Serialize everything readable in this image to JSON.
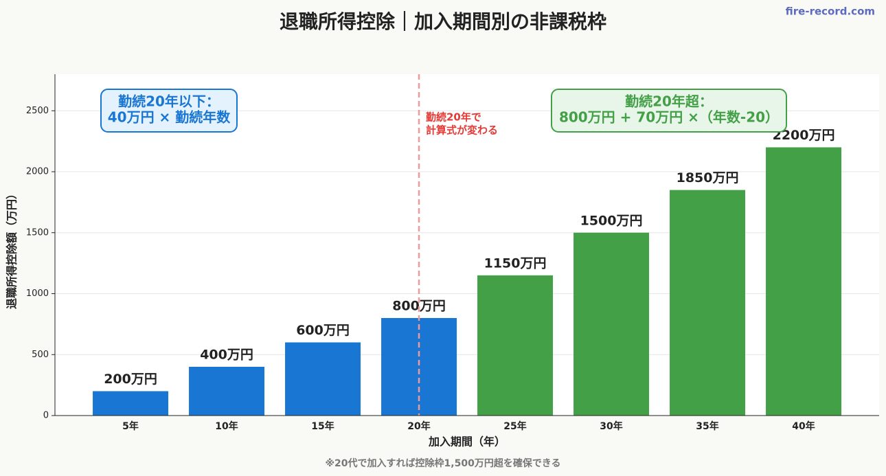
{
  "chart_data": {
    "type": "bar",
    "title": "退職所得控除｜加入期間別の非課税枠",
    "watermark": "fire-record.com",
    "x_label": "加入期間（年）",
    "y_label": "退職所得控除額（万円）",
    "footnote": "※20代で加入すれば控除枠1,500万円超を確保できる",
    "categories": [
      "5年",
      "10年",
      "15年",
      "20年",
      "25年",
      "30年",
      "35年",
      "40年"
    ],
    "values": [
      200,
      400,
      600,
      800,
      1150,
      1500,
      1850,
      2200
    ],
    "value_labels": [
      "200万円",
      "400万円",
      "600万円",
      "800万円",
      "1150万円",
      "1500万円",
      "1850万円",
      "2200万円"
    ],
    "colors": [
      "#1976d2",
      "#1976d2",
      "#1976d2",
      "#1976d2",
      "#43a047",
      "#43a047",
      "#43a047",
      "#43a047"
    ],
    "ylim": [
      0,
      2800
    ],
    "yticks": [
      0,
      500,
      1000,
      1500,
      2000,
      2500
    ],
    "grid": true,
    "annotations": [
      {
        "lines": [
          "勤続20年以下：",
          "40万円 × 勤続年数"
        ],
        "color": "#1976d2"
      },
      {
        "lines": [
          "勤続20年で",
          "計算式が変わる"
        ],
        "color": "#e53935"
      },
      {
        "lines": [
          "勤続20年超：",
          "800万円 + 70万円 ×（年数-20）"
        ],
        "color": "#43a047"
      }
    ]
  }
}
